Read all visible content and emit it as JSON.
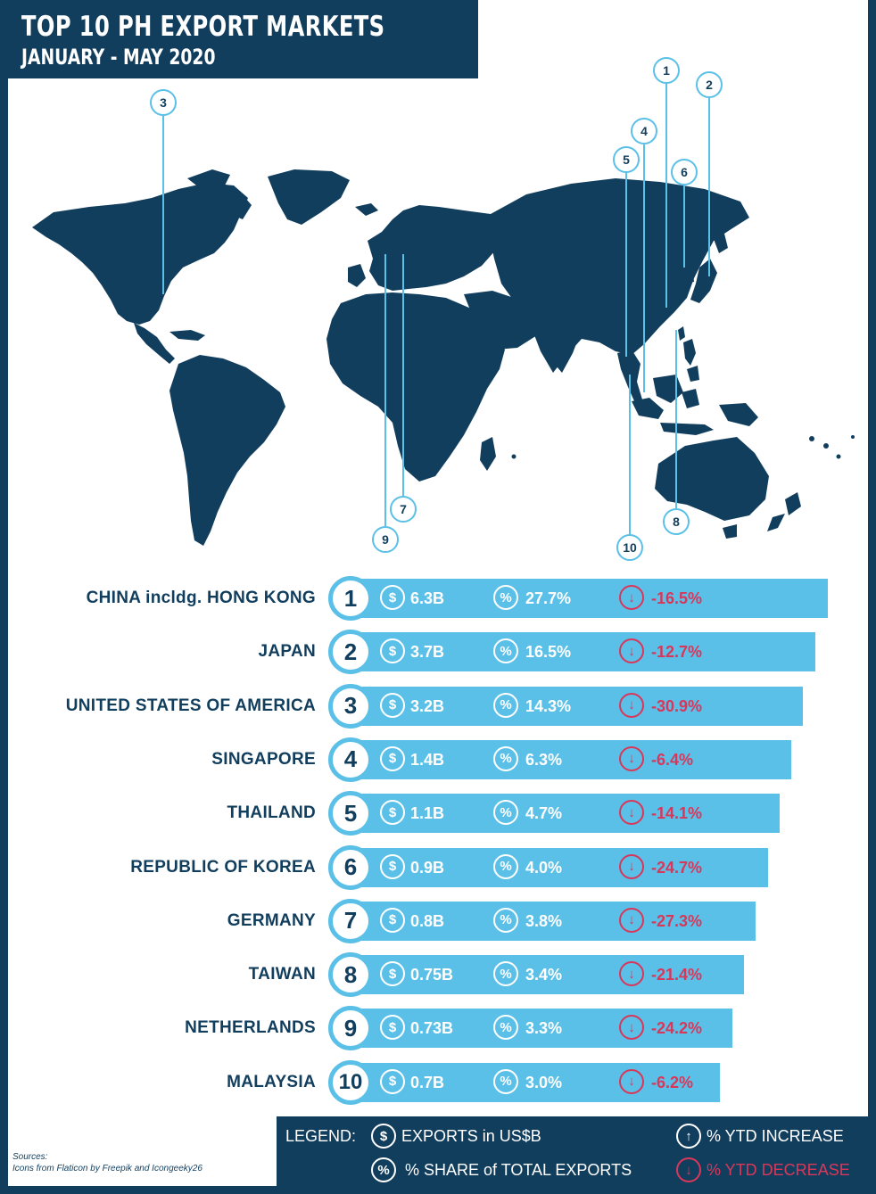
{
  "title": {
    "line1": "TOP 10 PH EXPORT MARKETS",
    "line2": "JANUARY - MAY 2020"
  },
  "colors": {
    "navy": "#123e5e",
    "bar_blue": "#5bc0e8",
    "decrease_red": "#d9375a"
  },
  "map_markers": [
    "1",
    "2",
    "3",
    "4",
    "5",
    "6",
    "7",
    "8",
    "9",
    "10"
  ],
  "rows": [
    {
      "country": "CHINA incldg. HONG KONG",
      "rank": "1",
      "exports": "6.3B",
      "share": "27.7%",
      "ytd": "-16.5%",
      "exports_value": 6.3
    },
    {
      "country": "JAPAN",
      "rank": "2",
      "exports": "3.7B",
      "share": "16.5%",
      "ytd": "-12.7%",
      "exports_value": 3.7
    },
    {
      "country": "UNITED STATES OF AMERICA",
      "rank": "3",
      "exports": "3.2B",
      "share": "14.3%",
      "ytd": "-30.9%",
      "exports_value": 3.2
    },
    {
      "country": "SINGAPORE",
      "rank": "4",
      "exports": "1.4B",
      "share": "6.3%",
      "ytd": "-6.4%",
      "exports_value": 1.4
    },
    {
      "country": "THAILAND",
      "rank": "5",
      "exports": "1.1B",
      "share": "4.7%",
      "ytd": "-14.1%",
      "exports_value": 1.1
    },
    {
      "country": "REPUBLIC OF KOREA",
      "rank": "6",
      "exports": "0.9B",
      "share": "4.0%",
      "ytd": "-24.7%",
      "exports_value": 0.9
    },
    {
      "country": "GERMANY",
      "rank": "7",
      "exports": "0.8B",
      "share": "3.8%",
      "ytd": "-27.3%",
      "exports_value": 0.8
    },
    {
      "country": "TAIWAN",
      "rank": "8",
      "exports": "0.75B",
      "share": "3.4%",
      "ytd": "-21.4%",
      "exports_value": 0.75
    },
    {
      "country": "NETHERLANDS",
      "rank": "9",
      "exports": "0.73B",
      "share": "3.3%",
      "ytd": "-24.2%",
      "exports_value": 0.73
    },
    {
      "country": "MALAYSIA",
      "rank": "10",
      "exports": "0.7B",
      "share": "3.0%",
      "ytd": "-6.2%",
      "exports_value": 0.7
    }
  ],
  "icons": {
    "exports": "dollar-icon",
    "share": "percent-icon",
    "decrease": "arrow-down-icon",
    "increase": "arrow-up-icon"
  },
  "legend": {
    "label": "LEGEND:",
    "exports": "EXPORTS in US$B",
    "share": "% SHARE of TOTAL EXPORTS",
    "increase": "% YTD INCREASE",
    "decrease": "% YTD DECREASE"
  },
  "sources": {
    "line1": "Sources:",
    "line2": "Icons from Flaticon by Freepik and Icongeeky26"
  }
}
